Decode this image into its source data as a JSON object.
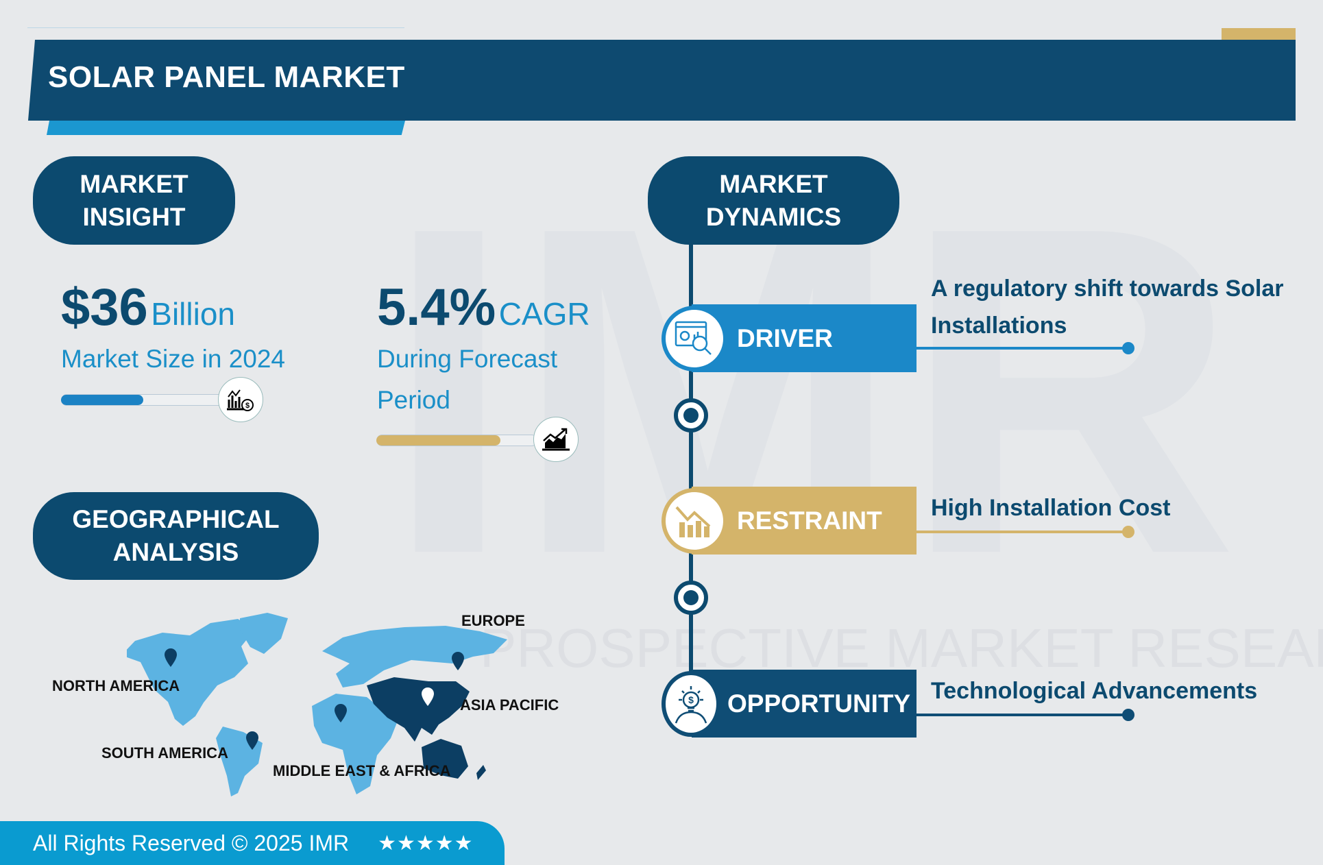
{
  "header": {
    "title": "SOLAR PANEL MARKET"
  },
  "watermark": {
    "logo": "IMR",
    "text": "PROSPECTIVE MARKET RESEARCH"
  },
  "insight": {
    "heading_line1": "MARKET",
    "heading_line2": "INSIGHT",
    "market_size": {
      "value": "$36",
      "unit": "Billion",
      "label": "Market Size in 2024",
      "progress": 0.5,
      "icon": "bar-chart-dollar-icon"
    },
    "cagr": {
      "value": "5.4%",
      "unit": "CAGR",
      "label_line1": "During Forecast",
      "label_line2": "Period",
      "progress": 0.77,
      "icon": "growth-chart-icon"
    }
  },
  "geo": {
    "heading_line1": "GEOGRAPHICAL",
    "heading_line2": "ANALYSIS",
    "regions": [
      "EUROPE",
      "NORTH AMERICA",
      "ASIA PACIFIC",
      "SOUTH AMERICA",
      "MIDDLE EAST & AFRICA"
    ],
    "highlighted_region": "ASIA PACIFIC"
  },
  "dynamics": {
    "heading_line1": "MARKET",
    "heading_line2": "DYNAMICS",
    "items": [
      {
        "label": "DRIVER",
        "text_line1": "A regulatory shift towards Solar",
        "text_line2": "Installations",
        "color": "#1b88c8",
        "icon": "analytics-magnifier-icon"
      },
      {
        "label": "RESTRAINT",
        "text_line1": "High Installation Cost",
        "color": "#d4b46a",
        "icon": "declining-chart-icon"
      },
      {
        "label": "OPPORTUNITY",
        "text_line1": "Technological Advancements",
        "color": "#0f4d75",
        "icon": "lightbulb-dollar-icon"
      }
    ]
  },
  "footer": {
    "text": "All Rights Reserved © 2025 IMR",
    "stars": "★★★★★",
    "rating": 5
  },
  "colors": {
    "navy": "#0c4a6f",
    "blue": "#1b88c8",
    "gold": "#d4b46a",
    "footer": "#0a9bd0",
    "background": "#e7e9eb"
  }
}
